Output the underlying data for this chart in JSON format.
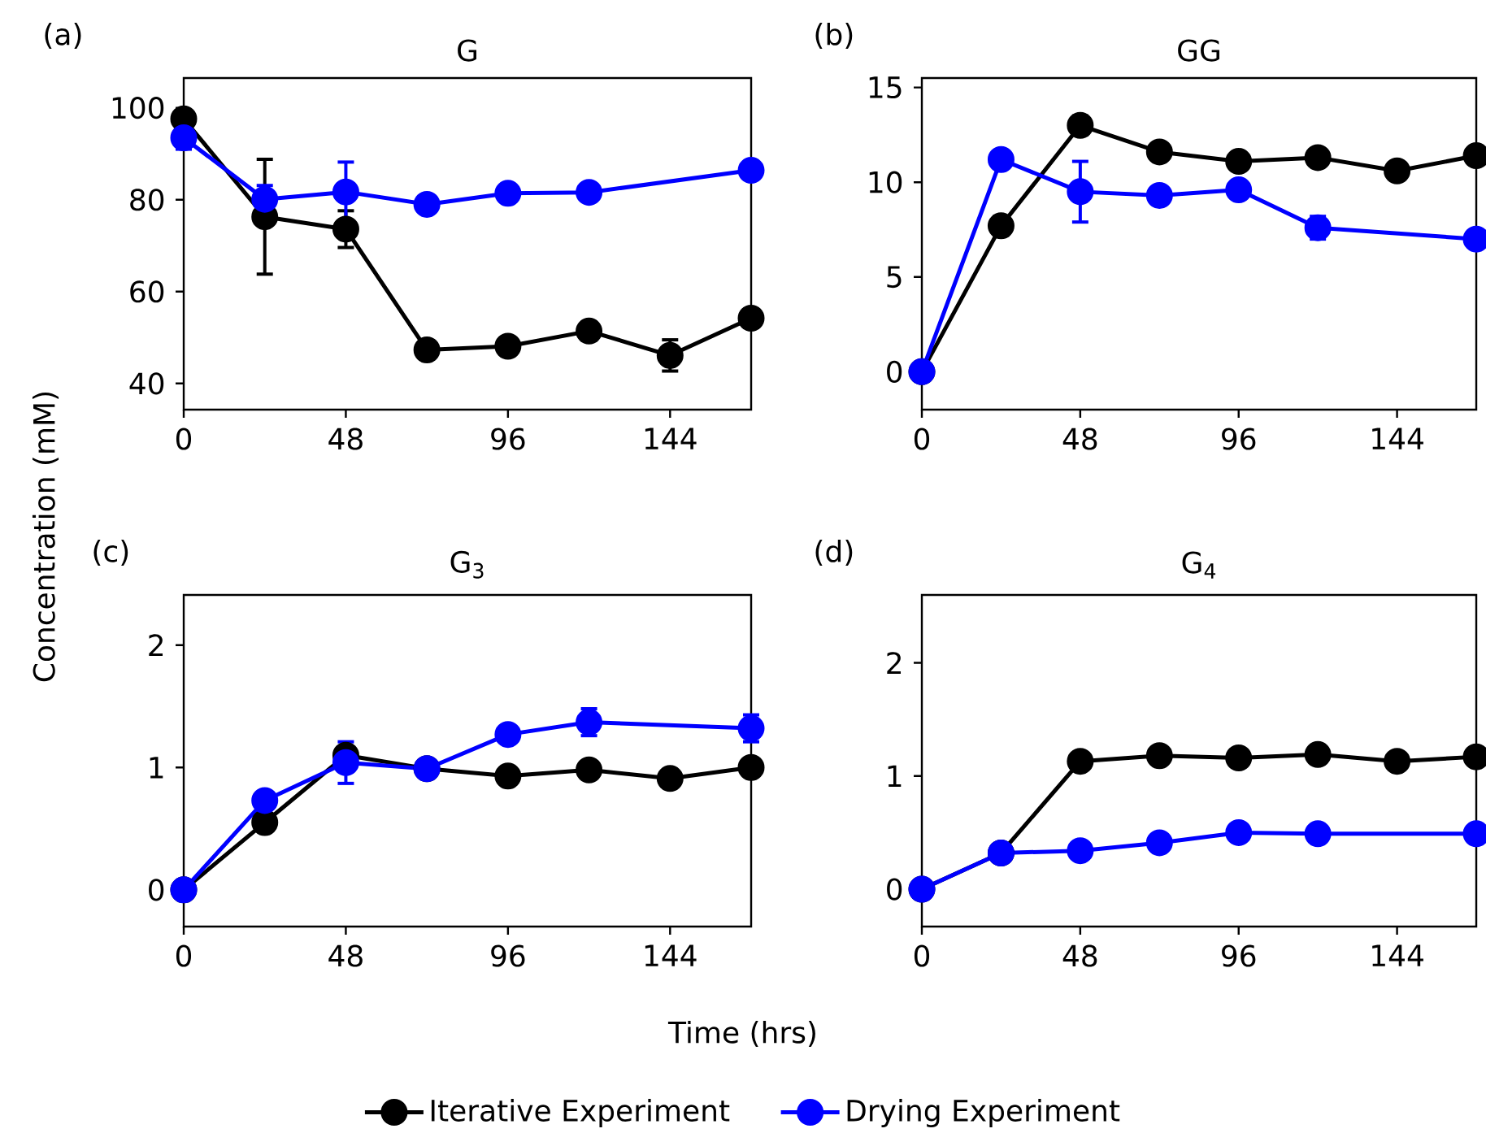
{
  "chart_data": [
    {
      "type": "line",
      "title": "G",
      "ylabel": "Concentration (mM)",
      "annotations": [
        "(a)"
      ],
      "xlim": [
        0,
        168
      ],
      "ylim": [
        34.3,
        106.5
      ],
      "xticks": [
        0,
        48,
        96,
        144
      ],
      "yticks": [
        40,
        60,
        80,
        100
      ],
      "marker": "circle",
      "line_style": "solid",
      "series": [
        {
          "color": "#000000",
          "x": [
            0,
            24,
            48,
            72,
            96,
            120,
            144,
            168
          ],
          "values": [
            97.6,
            76.3,
            73.6,
            47.3,
            48.1,
            51.4,
            46.1,
            54.2
          ],
          "errors": [
            1.5,
            12.5,
            4,
            2,
            1.5,
            2,
            3.4,
            2
          ]
        },
        {
          "color": "#0000ff",
          "x": [
            0,
            24,
            48,
            72,
            96,
            120,
            168
          ],
          "values": [
            93.5,
            80.1,
            81.7,
            79.0,
            81.4,
            81.6,
            86.4
          ],
          "errors": [
            2.5,
            3,
            6.5,
            null,
            null,
            null,
            null
          ]
        }
      ]
    },
    {
      "type": "line",
      "title": "GG",
      "annotations": [
        "(b)"
      ],
      "xlim": [
        0,
        168
      ],
      "ylim": [
        -2.0,
        15.5
      ],
      "xticks": [
        0,
        48,
        96,
        144
      ],
      "yticks": [
        0,
        5,
        10,
        15
      ],
      "marker": "circle",
      "line_style": "solid",
      "series": [
        {
          "color": "#000000",
          "x": [
            0,
            24,
            48,
            72,
            96,
            120,
            144,
            168
          ],
          "values": [
            0,
            7.7,
            13.0,
            11.6,
            11.1,
            11.3,
            10.6,
            11.4
          ],
          "errors": [
            null,
            0.5,
            0.5,
            null,
            null,
            null,
            null,
            null
          ]
        },
        {
          "color": "#0000ff",
          "x": [
            0,
            24,
            48,
            72,
            96,
            120,
            168
          ],
          "values": [
            0,
            11.2,
            9.5,
            9.3,
            9.6,
            7.6,
            7.0
          ],
          "errors": [
            null,
            null,
            1.6,
            null,
            null,
            0.6,
            null
          ]
        }
      ]
    },
    {
      "type": "line",
      "title": "G$_{3}$",
      "xlabel": "Time (hrs)",
      "annotations": [
        "(c)"
      ],
      "xlim": [
        0,
        168
      ],
      "ylim": [
        -0.3,
        2.41
      ],
      "xticks": [
        0,
        48,
        96,
        144
      ],
      "yticks": [
        0,
        1,
        2
      ],
      "marker": "circle",
      "line_style": "solid",
      "legend": "bottom",
      "series": [
        {
          "name": "Iterative Experiment",
          "color": "#000000",
          "x": [
            0,
            24,
            48,
            72,
            96,
            120,
            144,
            168
          ],
          "values": [
            0,
            0.55,
            1.1,
            0.99,
            0.93,
            0.98,
            0.91,
            1.0
          ],
          "errors": [
            null,
            null,
            0.05,
            null,
            null,
            null,
            null,
            null
          ]
        },
        {
          "name": "Drying Experiment",
          "color": "#0000ff",
          "x": [
            0,
            24,
            48,
            72,
            96,
            120,
            168
          ],
          "values": [
            0,
            0.73,
            1.04,
            0.99,
            1.27,
            1.37,
            1.32
          ],
          "errors": [
            null,
            0.05,
            0.17,
            null,
            0.04,
            0.11,
            0.11
          ]
        }
      ]
    },
    {
      "type": "line",
      "title": "G$_{4}$",
      "annotations": [
        "(d)"
      ],
      "xlim": [
        0,
        168
      ],
      "ylim": [
        -0.33,
        2.6
      ],
      "xticks": [
        0,
        48,
        96,
        144
      ],
      "yticks": [
        0,
        1,
        2
      ],
      "marker": "circle",
      "line_style": "solid",
      "series": [
        {
          "color": "#000000",
          "x": [
            0,
            24,
            48,
            72,
            96,
            120,
            144,
            168
          ],
          "values": [
            0,
            0.32,
            1.13,
            1.18,
            1.16,
            1.19,
            1.13,
            1.17
          ]
        },
        {
          "color": "#0000ff",
          "x": [
            0,
            24,
            48,
            72,
            96,
            120,
            168
          ],
          "values": [
            0,
            0.32,
            0.34,
            0.41,
            0.5,
            0.49,
            0.49
          ]
        }
      ]
    }
  ]
}
